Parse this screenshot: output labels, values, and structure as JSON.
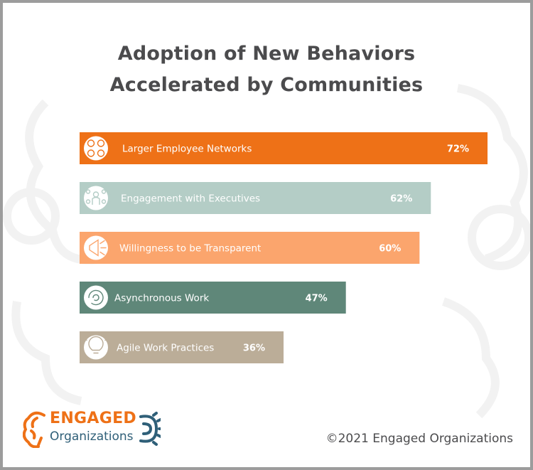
{
  "header": {
    "title_line1": "Adoption of New Behaviors",
    "title_line2": "Accelerated by Communities"
  },
  "chart_data": {
    "type": "bar",
    "orientation": "horizontal",
    "title": "Adoption of New Behaviors Accelerated by Communities",
    "categories": [
      "Larger Employee Networks",
      "Engagement with Executives",
      "Willingness to be Transparent",
      "Asynchronous Work",
      "Agile Work Practices"
    ],
    "values": [
      72,
      62,
      60,
      47,
      36
    ],
    "value_labels": [
      "72%",
      "62%",
      "60%",
      "47%",
      "36%"
    ],
    "unit": "%",
    "colors": [
      "#ee7117",
      "#b4cdc6",
      "#fba56d",
      "#5f8779",
      "#bbad98"
    ],
    "icons": [
      "people-network-icon",
      "executive-network-icon",
      "megaphone-icon",
      "cycle-arrows-icon",
      "lightbulb-ideas-icon"
    ],
    "grid": false,
    "legend": "none"
  },
  "footer": {
    "logo_line1": "ENGAGED",
    "logo_line2": "Organizations",
    "copyright": "©2021 Engaged Organizations"
  },
  "colors": {
    "frame": "#9c9c9c",
    "title_text": "#4b4b4d",
    "brand_orange": "#ee7117",
    "brand_navy": "#2f5f78"
  }
}
